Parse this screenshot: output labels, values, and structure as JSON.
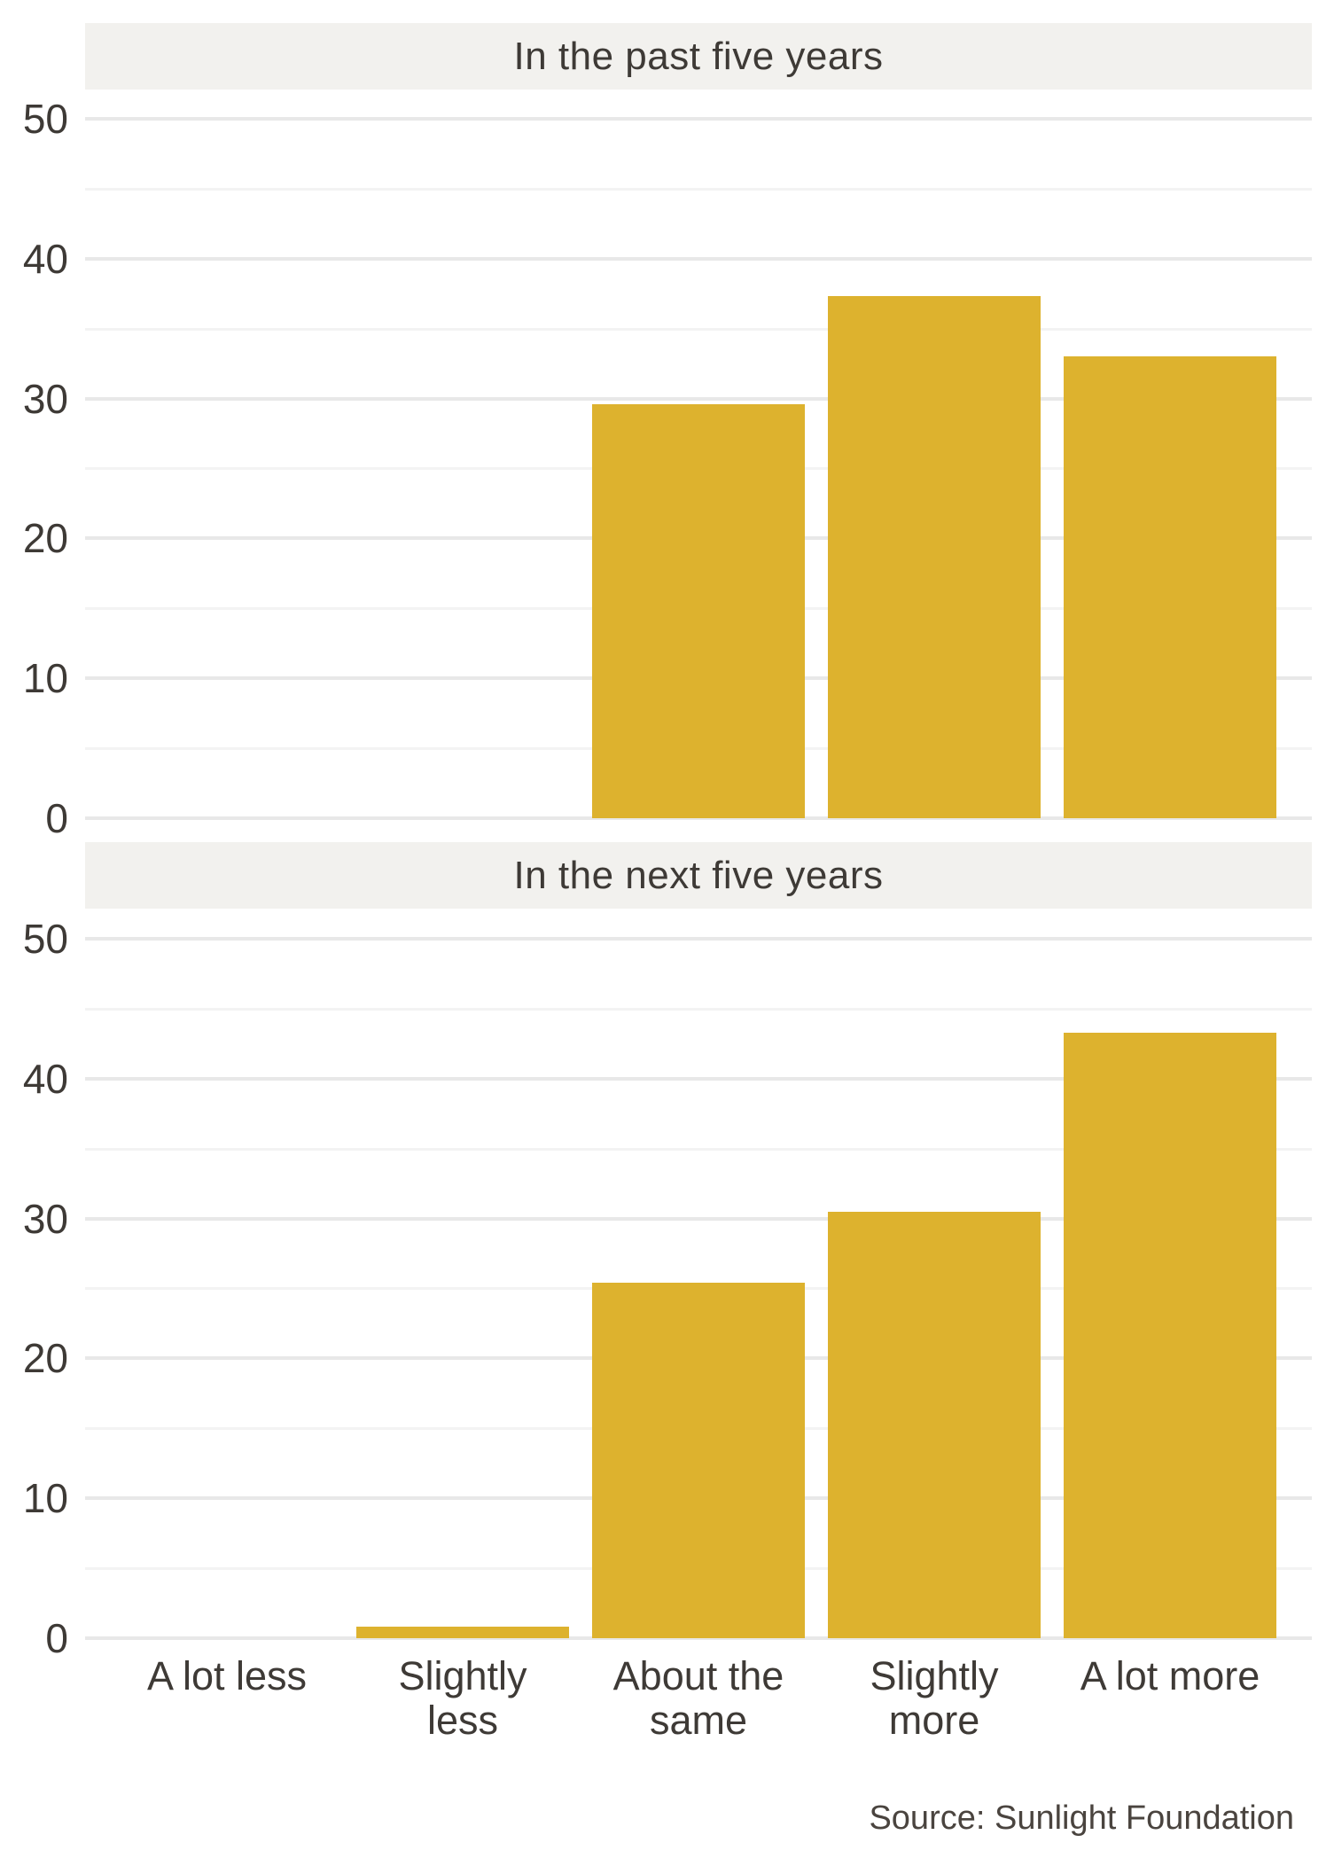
{
  "chart_data": {
    "type": "bar",
    "facets": 2,
    "categories": [
      "A lot less",
      "Slightly less",
      "About the same",
      "Slightly more",
      "A lot more"
    ],
    "category_label_lines": [
      [
        "A lot less"
      ],
      [
        "Slightly",
        "less"
      ],
      [
        "About the",
        "same"
      ],
      [
        "Slightly",
        "more"
      ],
      [
        "A lot more"
      ]
    ],
    "panels": [
      {
        "title": "In the past five years",
        "values": [
          0,
          0,
          29.6,
          37.3,
          33.0
        ]
      },
      {
        "title": "In the next five years",
        "values": [
          0,
          0.8,
          25.4,
          30.5,
          43.3
        ]
      }
    ],
    "ylabel": "",
    "xlabel": "",
    "ylim": [
      0,
      52
    ],
    "y_major_ticks": [
      0,
      10,
      20,
      30,
      40,
      50
    ],
    "y_minor_ticks": [
      5,
      15,
      25,
      35,
      45
    ],
    "grid": "horizontal gridlines, major and minor",
    "legend": "none"
  },
  "source": {
    "label": "Source: Sunlight Foundation"
  },
  "colors": {
    "bar": "#ddb22e",
    "strip_bg": "#f2f1ee",
    "text": "#3e3a36",
    "grid_major": "#e8e8e8",
    "grid_minor": "#f3f3f3",
    "background": "#ffffff"
  }
}
